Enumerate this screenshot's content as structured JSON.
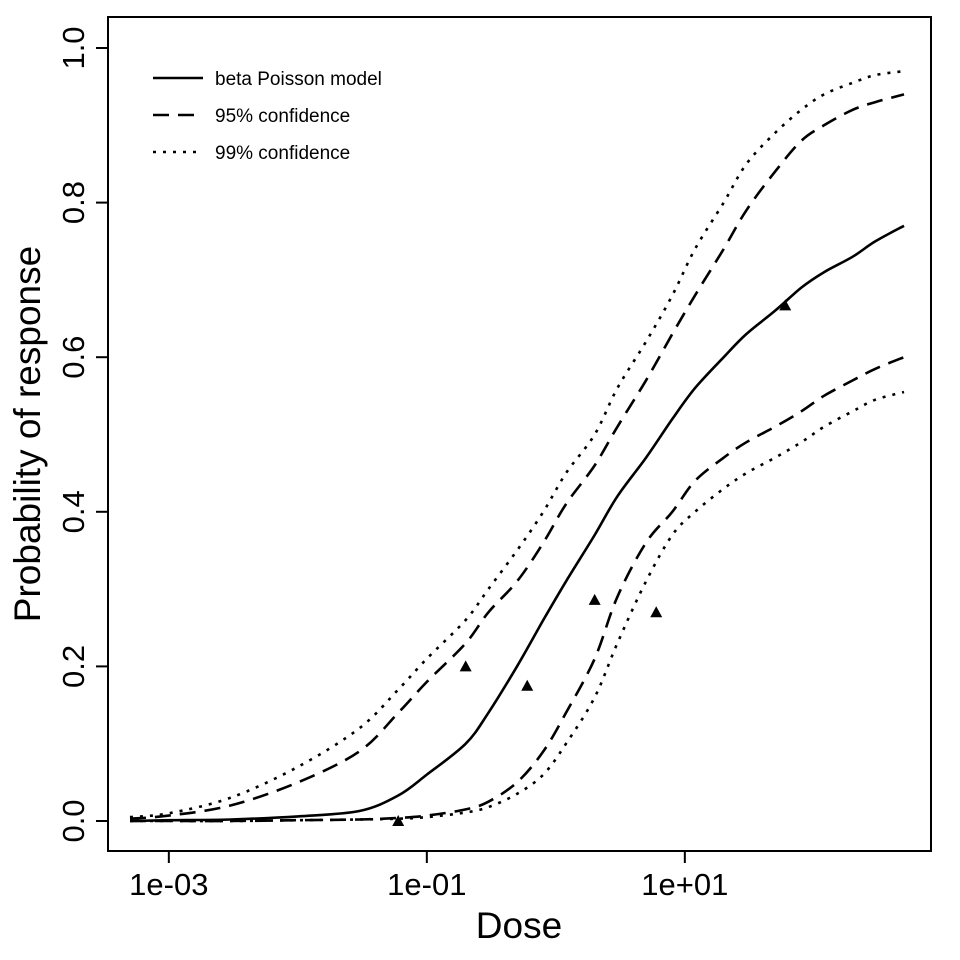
{
  "chart_data": {
    "type": "line",
    "title": "",
    "xlabel": "Dose",
    "ylabel": "Probability of response",
    "x_scale": "log10",
    "xlim": [
      0.0005,
      500
    ],
    "ylim": [
      0.0,
      1.0
    ],
    "x_ticks": [
      {
        "value": 0.001,
        "label": "1e-03"
      },
      {
        "value": 0.1,
        "label": "1e-01"
      },
      {
        "value": 10,
        "label": "1e+01"
      }
    ],
    "y_ticks": [
      {
        "value": 0.0,
        "label": "0.0"
      },
      {
        "value": 0.2,
        "label": "0.2"
      },
      {
        "value": 0.4,
        "label": "0.4"
      },
      {
        "value": 0.6,
        "label": "0.6"
      },
      {
        "value": 0.8,
        "label": "0.8"
      },
      {
        "value": 1.0,
        "label": "1.0"
      }
    ],
    "legend": {
      "position": "top-left",
      "entries": [
        {
          "label": "beta Poisson model",
          "style": "solid"
        },
        {
          "label": "95% confidence",
          "style": "dashed"
        },
        {
          "label": "99% confidence",
          "style": "dotted"
        }
      ]
    },
    "series": [
      {
        "name": "beta Poisson model",
        "style": "solid",
        "x": [
          0.0005,
          0.001,
          0.003,
          0.01,
          0.03,
          0.06,
          0.1,
          0.2,
          0.3,
          0.5,
          0.8,
          1.2,
          2,
          3,
          5,
          8,
          12,
          20,
          30,
          50,
          80,
          120,
          200,
          300,
          500
        ],
        "y": [
          0.0,
          0.001,
          0.002,
          0.006,
          0.013,
          0.033,
          0.06,
          0.1,
          0.14,
          0.2,
          0.26,
          0.31,
          0.37,
          0.42,
          0.47,
          0.52,
          0.56,
          0.6,
          0.63,
          0.66,
          0.69,
          0.71,
          0.73,
          0.75,
          0.77
        ]
      },
      {
        "name": "95% upper",
        "style": "dashed",
        "x": [
          0.0005,
          0.001,
          0.003,
          0.01,
          0.03,
          0.06,
          0.1,
          0.2,
          0.3,
          0.5,
          0.8,
          1.2,
          2,
          3,
          5,
          8,
          12,
          20,
          30,
          50,
          80,
          120,
          200,
          300,
          500
        ],
        "y": [
          0.003,
          0.007,
          0.02,
          0.05,
          0.09,
          0.14,
          0.18,
          0.23,
          0.27,
          0.31,
          0.36,
          0.41,
          0.46,
          0.51,
          0.57,
          0.63,
          0.68,
          0.74,
          0.79,
          0.84,
          0.88,
          0.9,
          0.92,
          0.93,
          0.94
        ]
      },
      {
        "name": "95% lower",
        "style": "dashed",
        "x": [
          0.0005,
          0.001,
          0.003,
          0.01,
          0.03,
          0.06,
          0.1,
          0.2,
          0.3,
          0.5,
          0.8,
          1.2,
          2,
          3,
          5,
          8,
          12,
          20,
          30,
          50,
          80,
          120,
          200,
          300,
          500
        ],
        "y": [
          0.0,
          0.0,
          0.0,
          0.001,
          0.002,
          0.004,
          0.007,
          0.015,
          0.025,
          0.05,
          0.09,
          0.14,
          0.21,
          0.29,
          0.36,
          0.4,
          0.44,
          0.47,
          0.49,
          0.51,
          0.53,
          0.55,
          0.57,
          0.585,
          0.6
        ]
      },
      {
        "name": "99% upper",
        "style": "dotted",
        "x": [
          0.0005,
          0.001,
          0.003,
          0.01,
          0.03,
          0.06,
          0.1,
          0.2,
          0.3,
          0.5,
          0.8,
          1.2,
          2,
          3,
          5,
          8,
          12,
          20,
          30,
          50,
          80,
          120,
          200,
          300,
          500
        ],
        "y": [
          0.005,
          0.01,
          0.03,
          0.07,
          0.12,
          0.17,
          0.21,
          0.26,
          0.3,
          0.35,
          0.4,
          0.45,
          0.5,
          0.56,
          0.62,
          0.68,
          0.74,
          0.8,
          0.85,
          0.89,
          0.92,
          0.94,
          0.955,
          0.965,
          0.97
        ]
      },
      {
        "name": "99% lower",
        "style": "dotted",
        "x": [
          0.0005,
          0.001,
          0.003,
          0.01,
          0.03,
          0.06,
          0.1,
          0.2,
          0.3,
          0.5,
          0.8,
          1.2,
          2,
          3,
          5,
          8,
          12,
          20,
          30,
          50,
          80,
          120,
          200,
          300,
          500
        ],
        "y": [
          0.0,
          0.0,
          0.0,
          0.001,
          0.002,
          0.003,
          0.005,
          0.011,
          0.018,
          0.035,
          0.06,
          0.1,
          0.16,
          0.23,
          0.31,
          0.37,
          0.4,
          0.43,
          0.45,
          0.47,
          0.49,
          0.51,
          0.53,
          0.545,
          0.555
        ]
      }
    ],
    "points": {
      "name": "observed",
      "marker": "triangle",
      "x": [
        0.06,
        0.2,
        0.6,
        2,
        6,
        60
      ],
      "y": [
        0.0,
        0.2,
        0.175,
        0.286,
        0.27,
        0.667
      ]
    }
  }
}
